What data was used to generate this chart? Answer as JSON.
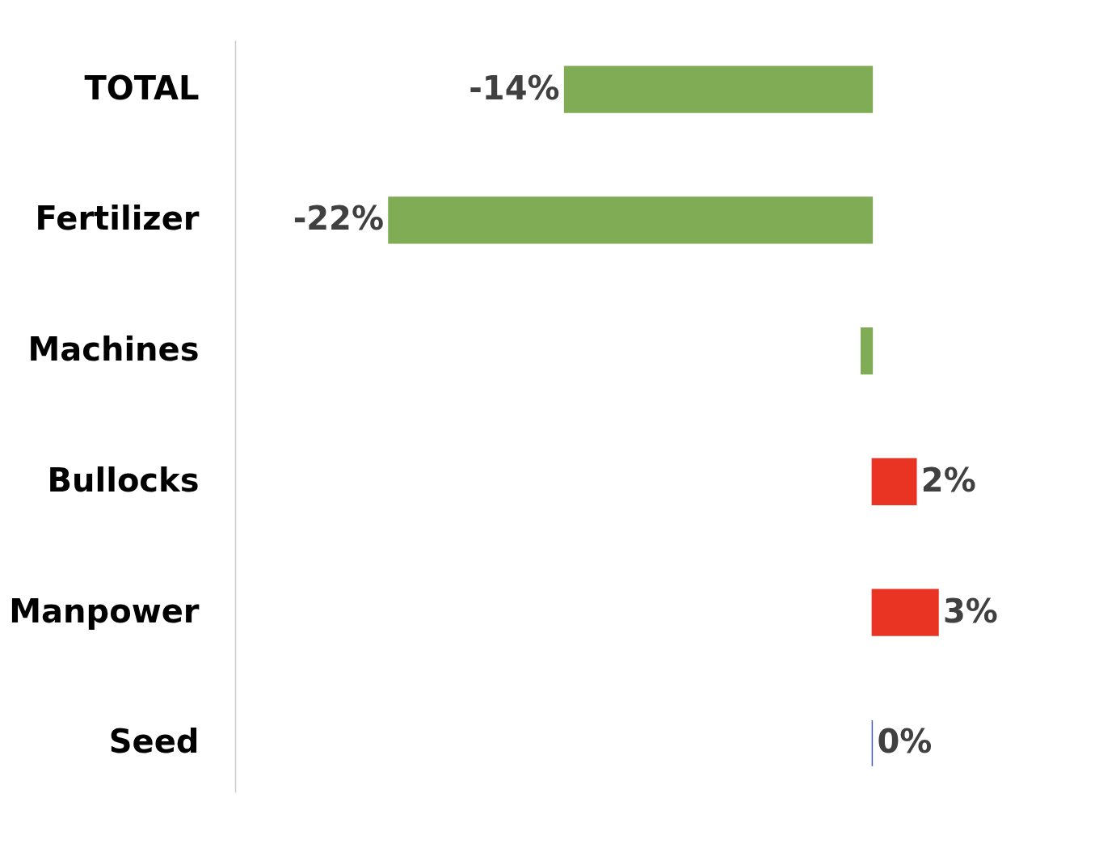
{
  "chart_data": {
    "type": "bar",
    "orientation": "horizontal",
    "categories": [
      "TOTAL",
      "Fertilizer",
      "Machines",
      "Bullocks",
      "Manpower",
      "Seed"
    ],
    "values": [
      -14,
      -22,
      -0.5,
      2,
      3,
      0
    ],
    "value_labels": [
      "-14%",
      "-22%",
      null,
      "2%",
      "3%",
      "0%"
    ],
    "colors": [
      "#7fac55",
      "#7fac55",
      "#7fac55",
      "#e93323",
      "#e93323",
      "#4a5fb5"
    ]
  }
}
